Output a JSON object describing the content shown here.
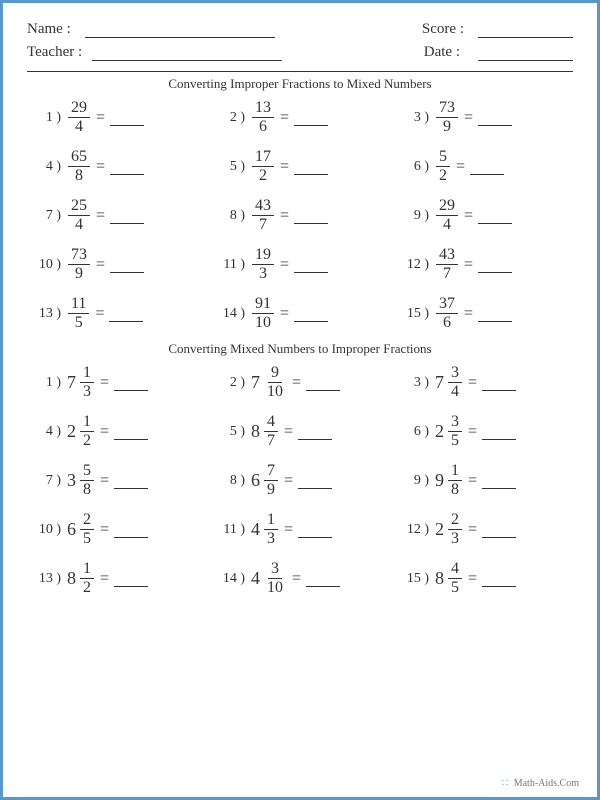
{
  "header": {
    "name_label": "Name :",
    "teacher_label": "Teacher :",
    "score_label": "Score :",
    "date_label": "Date :"
  },
  "section1": {
    "title": "Converting Improper Fractions to Mixed Numbers",
    "problems": [
      {
        "n": "1 )",
        "num": "29",
        "den": "4"
      },
      {
        "n": "2 )",
        "num": "13",
        "den": "6"
      },
      {
        "n": "3 )",
        "num": "73",
        "den": "9"
      },
      {
        "n": "4 )",
        "num": "65",
        "den": "8"
      },
      {
        "n": "5 )",
        "num": "17",
        "den": "2"
      },
      {
        "n": "6 )",
        "num": "5",
        "den": "2"
      },
      {
        "n": "7 )",
        "num": "25",
        "den": "4"
      },
      {
        "n": "8 )",
        "num": "43",
        "den": "7"
      },
      {
        "n": "9 )",
        "num": "29",
        "den": "4"
      },
      {
        "n": "10 )",
        "num": "73",
        "den": "9"
      },
      {
        "n": "11 )",
        "num": "19",
        "den": "3"
      },
      {
        "n": "12 )",
        "num": "43",
        "den": "7"
      },
      {
        "n": "13 )",
        "num": "11",
        "den": "5"
      },
      {
        "n": "14 )",
        "num": "91",
        "den": "10"
      },
      {
        "n": "15 )",
        "num": "37",
        "den": "6"
      }
    ]
  },
  "section2": {
    "title": "Converting Mixed Numbers to Improper Fractions",
    "problems": [
      {
        "n": "1 )",
        "whole": "7",
        "num": "1",
        "den": "3"
      },
      {
        "n": "2 )",
        "whole": "7",
        "num": "9",
        "den": "10"
      },
      {
        "n": "3 )",
        "whole": "7",
        "num": "3",
        "den": "4"
      },
      {
        "n": "4 )",
        "whole": "2",
        "num": "1",
        "den": "2"
      },
      {
        "n": "5 )",
        "whole": "8",
        "num": "4",
        "den": "7"
      },
      {
        "n": "6 )",
        "whole": "2",
        "num": "3",
        "den": "5"
      },
      {
        "n": "7 )",
        "whole": "3",
        "num": "5",
        "den": "8"
      },
      {
        "n": "8 )",
        "whole": "6",
        "num": "7",
        "den": "9"
      },
      {
        "n": "9 )",
        "whole": "9",
        "num": "1",
        "den": "8"
      },
      {
        "n": "10 )",
        "whole": "6",
        "num": "2",
        "den": "5"
      },
      {
        "n": "11 )",
        "whole": "4",
        "num": "1",
        "den": "3"
      },
      {
        "n": "12 )",
        "whole": "2",
        "num": "2",
        "den": "3"
      },
      {
        "n": "13 )",
        "whole": "8",
        "num": "1",
        "den": "2"
      },
      {
        "n": "14 )",
        "whole": "4",
        "num": "3",
        "den": "10"
      },
      {
        "n": "15 )",
        "whole": "8",
        "num": "4",
        "den": "5"
      }
    ]
  },
  "footer": {
    "text": "Math-Aids.Com"
  },
  "colors": {
    "border": "#5a99c7",
    "text": "#333333",
    "background": "#ffffff"
  }
}
